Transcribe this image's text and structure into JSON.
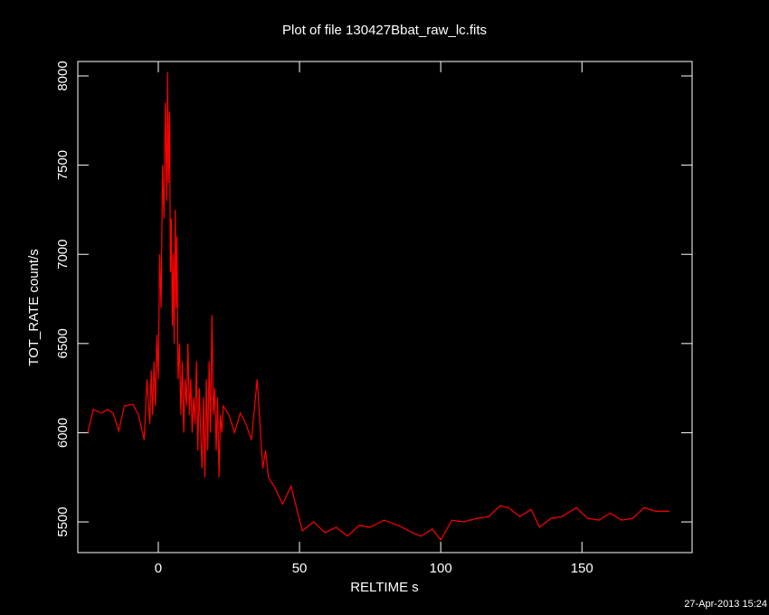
{
  "chart_data": {
    "type": "line",
    "title": "Plot of file 130427Bbat_raw_lc.fits",
    "x_label": "RELTIME  s",
    "y_label": "TOT_RATE  count/s",
    "annotation": "27-Apr-2013 15:24",
    "xlim": [
      -28.5,
      189
    ],
    "ylim": [
      5328,
      8081
    ],
    "xticks": [
      0,
      50,
      100,
      150
    ],
    "yticks": [
      5500,
      6000,
      6500,
      7000,
      7500,
      8000
    ],
    "series": [
      {
        "name": "TOT_RATE",
        "color": "#ff0000",
        "x": [
          -25,
          -23,
          -20,
          -18,
          -16,
          -14,
          -12,
          -9,
          -7,
          -5,
          -4,
          -3,
          -2.5,
          -2,
          -1.5,
          -1,
          -0.5,
          0,
          0.5,
          1,
          1.5,
          2,
          2.5,
          3,
          3.3,
          3.6,
          4,
          4.3,
          4.6,
          5,
          5.3,
          5.6,
          6,
          6.3,
          6.6,
          7,
          7.5,
          8,
          8.5,
          9,
          9.5,
          10,
          10.5,
          11,
          11.5,
          12,
          12.5,
          13,
          13.5,
          14,
          14.5,
          15,
          15.5,
          16,
          16.5,
          17,
          17.5,
          18,
          18.5,
          19,
          19.5,
          20,
          20.5,
          21,
          21.5,
          22,
          22.5,
          23,
          25,
          27,
          29,
          31,
          33,
          35,
          37,
          38,
          39,
          41,
          44,
          47,
          51,
          55,
          59,
          63,
          67,
          71,
          75,
          80,
          85,
          90,
          93,
          97,
          100,
          104,
          108,
          113,
          117,
          121,
          124,
          128,
          132,
          135,
          139,
          143,
          148,
          152,
          156,
          160,
          164,
          168,
          172,
          176,
          181
        ],
        "values": [
          6000,
          6130,
          6110,
          6130,
          6110,
          6010,
          6150,
          6160,
          6100,
          5960,
          6300,
          6050,
          6350,
          6100,
          6400,
          6150,
          6550,
          6300,
          7000,
          6700,
          7500,
          7200,
          7850,
          7300,
          8020,
          7400,
          7800,
          6900,
          7200,
          6600,
          7000,
          6500,
          7250,
          6700,
          7100,
          6300,
          6500,
          6100,
          6400,
          6000,
          6300,
          6150,
          6500,
          6100,
          6300,
          6000,
          6200,
          6050,
          6400,
          5900,
          6250,
          6000,
          5800,
          6200,
          5750,
          6300,
          5900,
          6400,
          6000,
          6660,
          6100,
          6250,
          5900,
          6200,
          5750,
          6100,
          6000,
          6150,
          6100,
          6000,
          6110,
          6050,
          5960,
          6300,
          5800,
          5900,
          5750,
          5700,
          5600,
          5700,
          5450,
          5500,
          5440,
          5470,
          5420,
          5480,
          5470,
          5510,
          5480,
          5440,
          5420,
          5460,
          5400,
          5510,
          5500,
          5520,
          5530,
          5590,
          5580,
          5530,
          5570,
          5470,
          5520,
          5530,
          5580,
          5520,
          5510,
          5550,
          5510,
          5520,
          5580,
          5560,
          5560
        ]
      }
    ]
  }
}
